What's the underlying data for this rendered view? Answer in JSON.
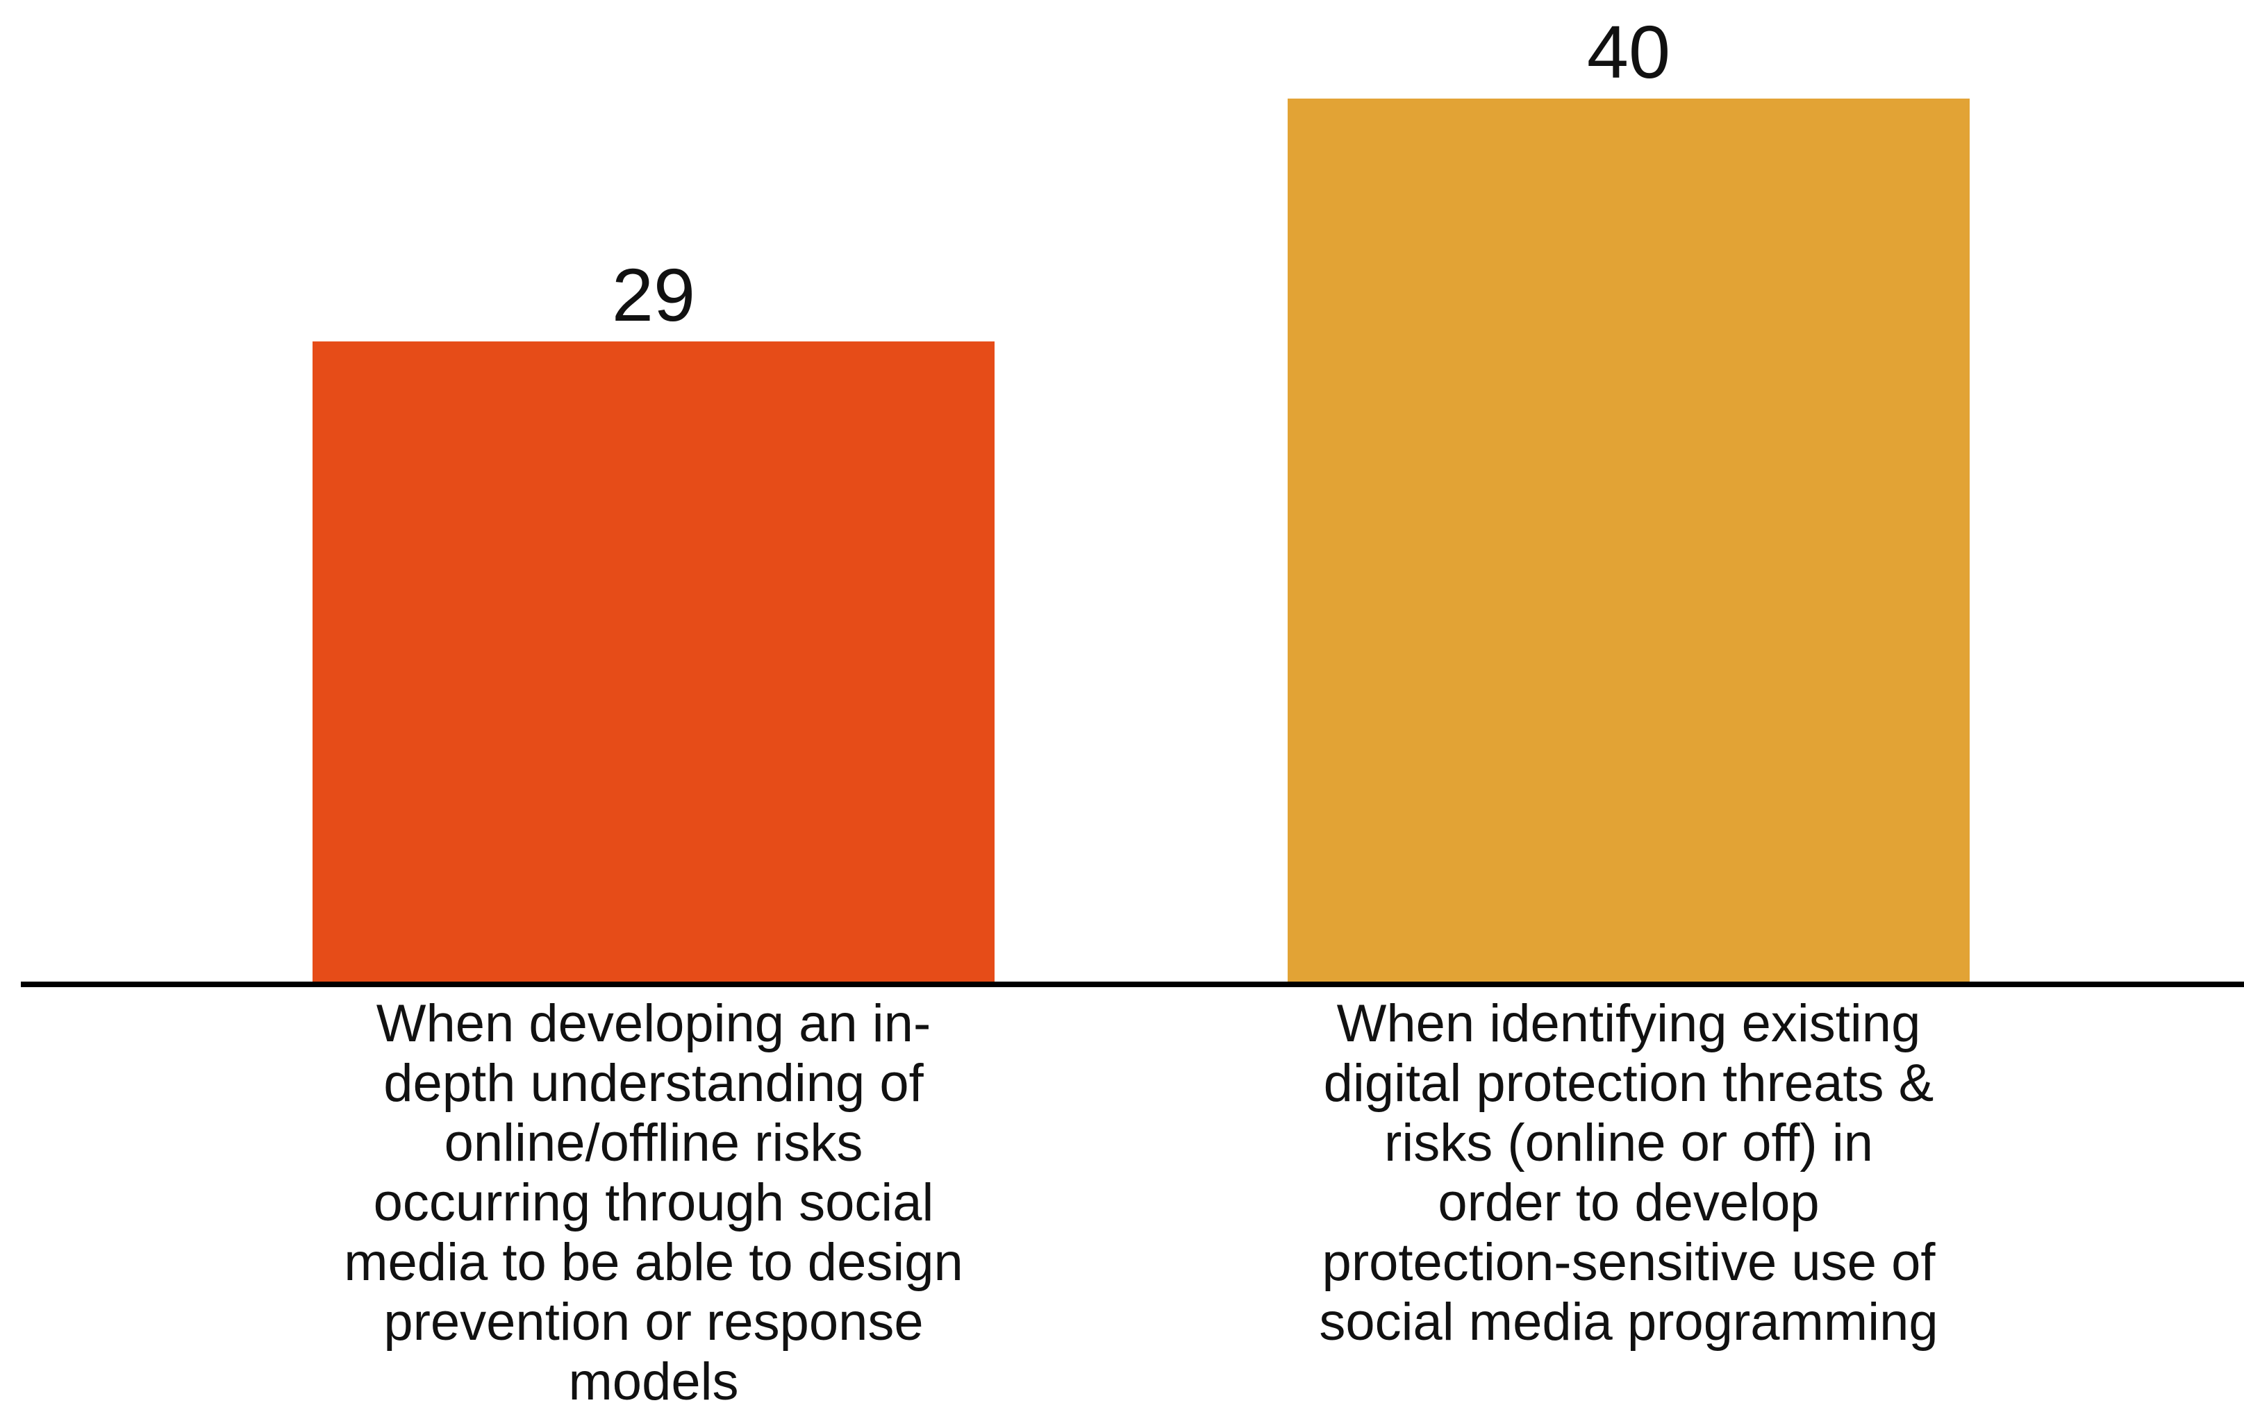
{
  "chart_data": {
    "type": "bar",
    "categories": [
      "When developing an in-\ndepth understanding of\nonline/offline risks\noccurring through social\nmedia to be able to design\nprevention or response\nmodels",
      "When identifying existing\ndigital protection threats &\nrisks (online or off) in\norder to develop\nprotection-sensitive use of\nsocial media programming"
    ],
    "values": [
      29,
      40
    ],
    "value_labels": [
      "29",
      "40"
    ],
    "colors": [
      "#e64c18",
      "#e2a335"
    ],
    "title": "",
    "xlabel": "",
    "ylabel": "",
    "ylim": [
      0,
      42
    ],
    "grid": false,
    "legend": "none"
  }
}
